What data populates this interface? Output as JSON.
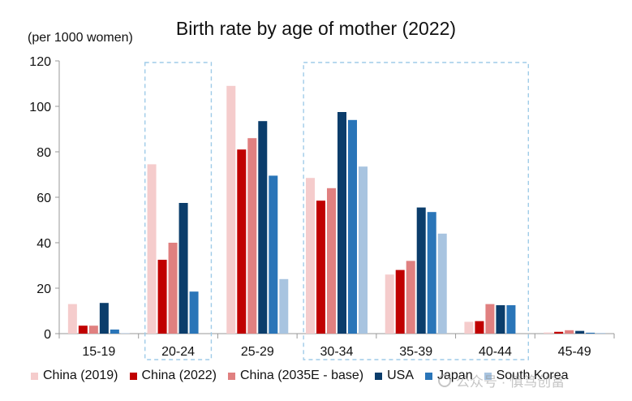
{
  "chart_data": {
    "type": "bar",
    "title": "Birth rate by age of mother (2022)",
    "ylabel": "(per 1000 women)",
    "ylim": [
      0,
      120
    ],
    "yticks": [
      0,
      20,
      40,
      60,
      80,
      100,
      120
    ],
    "categories": [
      "15-19",
      "20-24",
      "25-29",
      "30-34",
      "35-39",
      "40-44",
      "45-49"
    ],
    "series": [
      {
        "name": "China (2019)",
        "color": "#f5cccc",
        "values": [
          13,
          74.5,
          109,
          68.5,
          26,
          5.2,
          0.5
        ]
      },
      {
        "name": "China (2022)",
        "color": "#c00000",
        "values": [
          3.5,
          32.5,
          81,
          58.5,
          28,
          5.5,
          0.8
        ]
      },
      {
        "name": "China (2035E - base)",
        "color": "#e08080",
        "values": [
          3.5,
          40,
          86,
          64,
          32,
          13,
          1.5
        ]
      },
      {
        "name": "USA",
        "color": "#0b3d6b",
        "values": [
          13.5,
          57.5,
          93.5,
          97.5,
          55.5,
          12.5,
          1.2
        ]
      },
      {
        "name": "Japan",
        "color": "#2a75b8",
        "values": [
          1.8,
          18.5,
          69.5,
          94,
          53.5,
          12.5,
          0.4
        ]
      },
      {
        "name": "South Korea",
        "color": "#a8c4e0",
        "values": [
          0.2,
          0,
          24,
          73.5,
          44,
          0,
          0.3
        ]
      }
    ],
    "highlight_boxes": [
      "20-24",
      "30-34 to 40-44"
    ],
    "legend": "bottom",
    "grid": false
  },
  "watermark": {
    "text": "公众号 · 慎笃创富"
  }
}
